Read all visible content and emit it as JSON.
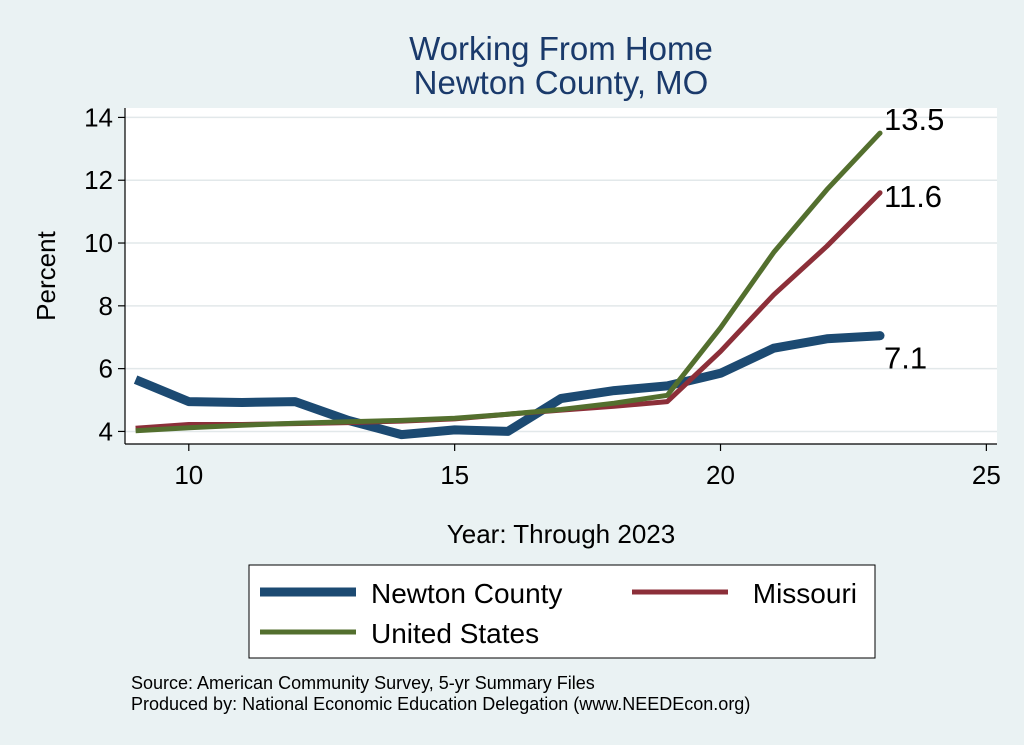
{
  "chart_data": {
    "type": "line",
    "title": [
      "Working From Home",
      "Newton County, MO"
    ],
    "xlabel": "Year: Through 2023",
    "ylabel": "Percent",
    "xlim": [
      8.8,
      25.2
    ],
    "ylim": [
      3.6,
      14.3
    ],
    "xticks": [
      10,
      15,
      20,
      25
    ],
    "yticks": [
      4,
      6,
      8,
      10,
      12,
      14
    ],
    "grid": true,
    "x": [
      9,
      10,
      11,
      12,
      13,
      14,
      15,
      16,
      17,
      18,
      19,
      20,
      21,
      22,
      23
    ],
    "series": [
      {
        "name": "Newton County",
        "color": "#1c4a72",
        "values": [
          5.65,
          4.95,
          4.92,
          4.95,
          4.35,
          3.9,
          4.05,
          4.0,
          5.05,
          5.3,
          5.45,
          5.85,
          6.65,
          6.95,
          7.05
        ],
        "end_label": "7.1"
      },
      {
        "name": "Missouri",
        "color": "#8c2f39",
        "values": [
          4.1,
          4.22,
          4.22,
          4.25,
          4.28,
          4.33,
          4.4,
          4.55,
          4.68,
          4.8,
          4.95,
          6.55,
          8.35,
          9.9,
          11.6
        ],
        "end_label": "11.6"
      },
      {
        "name": "United States",
        "color": "#536f2e",
        "values": [
          4.02,
          4.12,
          4.2,
          4.26,
          4.31,
          4.35,
          4.42,
          4.55,
          4.7,
          4.9,
          5.15,
          7.3,
          9.7,
          11.7,
          13.5
        ],
        "end_label": "13.5"
      }
    ],
    "legend_position": "bottom"
  },
  "notes": [
    "Source: American Community Survey, 5-yr Summary Files",
    "Produced by: National Economic Education Delegation (www.NEEDEcon.org)"
  ]
}
